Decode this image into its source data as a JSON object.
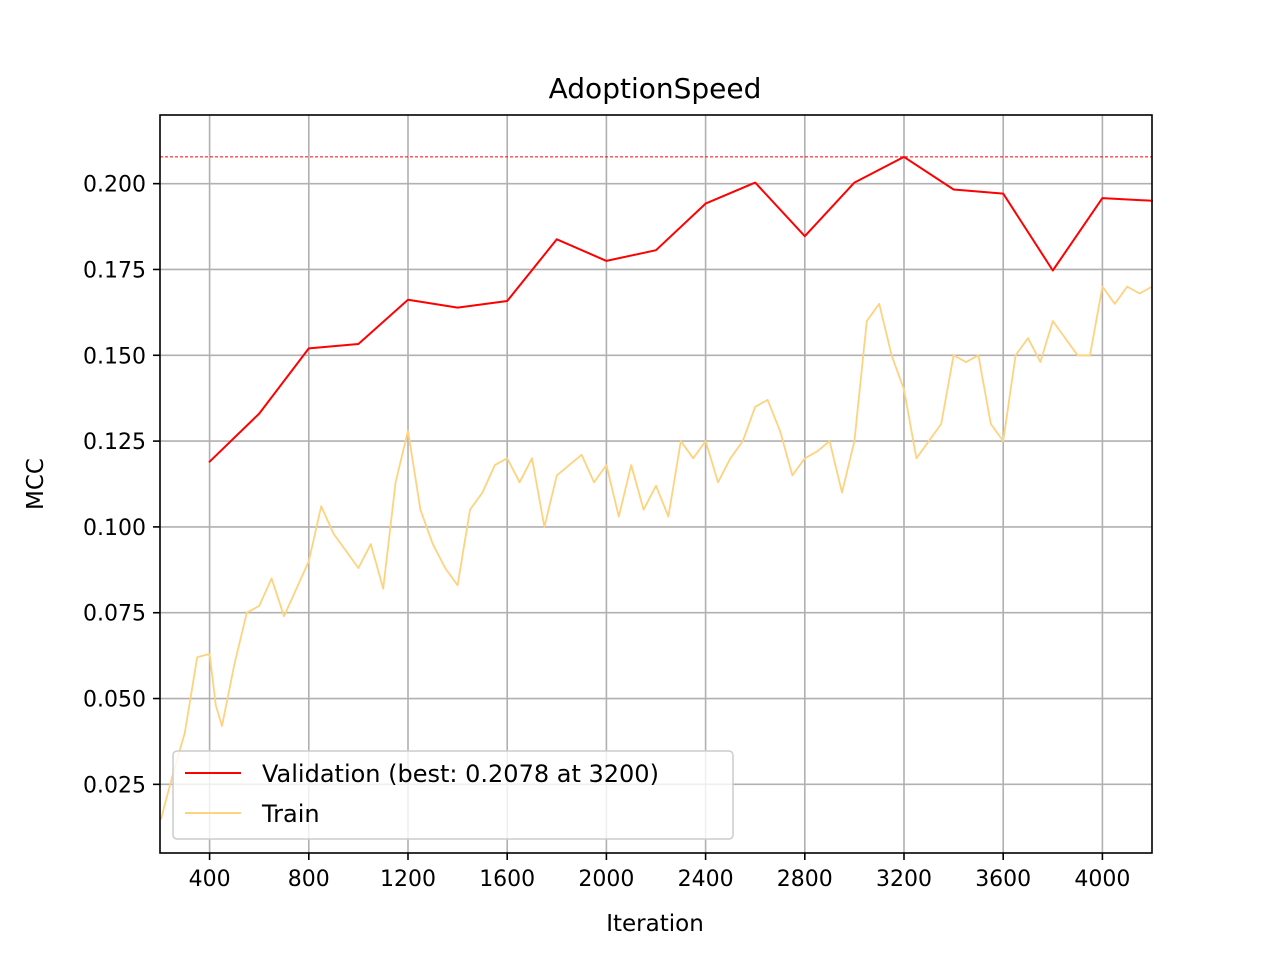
{
  "chart_data": {
    "type": "line",
    "title": "AdoptionSpeed",
    "xlabel": "Iteration",
    "ylabel": "MCC",
    "xlim": [
      200,
      4200
    ],
    "ylim": [
      0.005,
      0.22
    ],
    "x_ticks": [
      400,
      800,
      1200,
      1600,
      2000,
      2400,
      2800,
      3200,
      3600,
      4000
    ],
    "x_tick_labels": [
      "400",
      "800",
      "1200",
      "1600",
      "2000",
      "2400",
      "2800",
      "3200",
      "3600",
      "4000"
    ],
    "y_ticks": [
      0.025,
      0.05,
      0.075,
      0.1,
      0.125,
      0.15,
      0.175,
      0.2
    ],
    "y_tick_labels": [
      "0.025",
      "0.050",
      "0.075",
      "0.100",
      "0.125",
      "0.150",
      "0.175",
      "0.200"
    ],
    "grid": true,
    "legend_position": "lower-left",
    "best_line": {
      "value": 0.2078,
      "color": "#ff0000",
      "style": "dashed"
    },
    "series": [
      {
        "name": "Validation (best: 0.2078 at 3200)",
        "color": "#ff0000",
        "x": [
          400,
          600,
          800,
          1000,
          1200,
          1400,
          1600,
          1800,
          2000,
          2200,
          2400,
          2600,
          2800,
          3000,
          3200,
          3400,
          3600,
          3800,
          4000,
          4200
        ],
        "y": [
          0.119,
          0.133,
          0.152,
          0.1533,
          0.1662,
          0.1639,
          0.1658,
          0.1838,
          0.1775,
          0.1806,
          0.1942,
          0.2003,
          0.1847,
          0.2003,
          0.2078,
          0.1983,
          0.1971,
          0.1747,
          0.1958,
          0.195
        ]
      },
      {
        "name": "Train",
        "color": "#ffd27f",
        "x": [
          205,
          230,
          260,
          300,
          350,
          400,
          425,
          450,
          500,
          550,
          600,
          650,
          700,
          750,
          800,
          850,
          900,
          950,
          1000,
          1050,
          1100,
          1150,
          1200,
          1250,
          1300,
          1350,
          1400,
          1450,
          1500,
          1550,
          1600,
          1650,
          1700,
          1750,
          1800,
          1850,
          1900,
          1950,
          2000,
          2050,
          2100,
          2150,
          2200,
          2250,
          2300,
          2350,
          2400,
          2450,
          2500,
          2550,
          2600,
          2650,
          2700,
          2750,
          2800,
          2850,
          2900,
          2950,
          3000,
          3050,
          3100,
          3150,
          3200,
          3250,
          3300,
          3350,
          3400,
          3450,
          3500,
          3550,
          3600,
          3650,
          3700,
          3750,
          3800,
          3850,
          3900,
          3950,
          4000,
          4050,
          4100,
          4150,
          4200
        ],
        "y": [
          0.015,
          0.022,
          0.03,
          0.04,
          0.062,
          0.063,
          0.048,
          0.042,
          0.06,
          0.075,
          0.077,
          0.085,
          0.074,
          0.082,
          0.09,
          0.106,
          0.098,
          0.093,
          0.088,
          0.095,
          0.082,
          0.113,
          0.128,
          0.105,
          0.095,
          0.088,
          0.083,
          0.105,
          0.11,
          0.118,
          0.12,
          0.113,
          0.12,
          0.1,
          0.115,
          0.118,
          0.121,
          0.113,
          0.118,
          0.103,
          0.118,
          0.105,
          0.112,
          0.103,
          0.125,
          0.12,
          0.125,
          0.113,
          0.12,
          0.125,
          0.135,
          0.137,
          0.128,
          0.115,
          0.12,
          0.122,
          0.125,
          0.11,
          0.125,
          0.16,
          0.165,
          0.15,
          0.14,
          0.12,
          0.125,
          0.13,
          0.15,
          0.148,
          0.15,
          0.13,
          0.125,
          0.15,
          0.155,
          0.148,
          0.16,
          0.155,
          0.15,
          0.15,
          0.17,
          0.165,
          0.17,
          0.168,
          0.17
        ]
      }
    ]
  }
}
